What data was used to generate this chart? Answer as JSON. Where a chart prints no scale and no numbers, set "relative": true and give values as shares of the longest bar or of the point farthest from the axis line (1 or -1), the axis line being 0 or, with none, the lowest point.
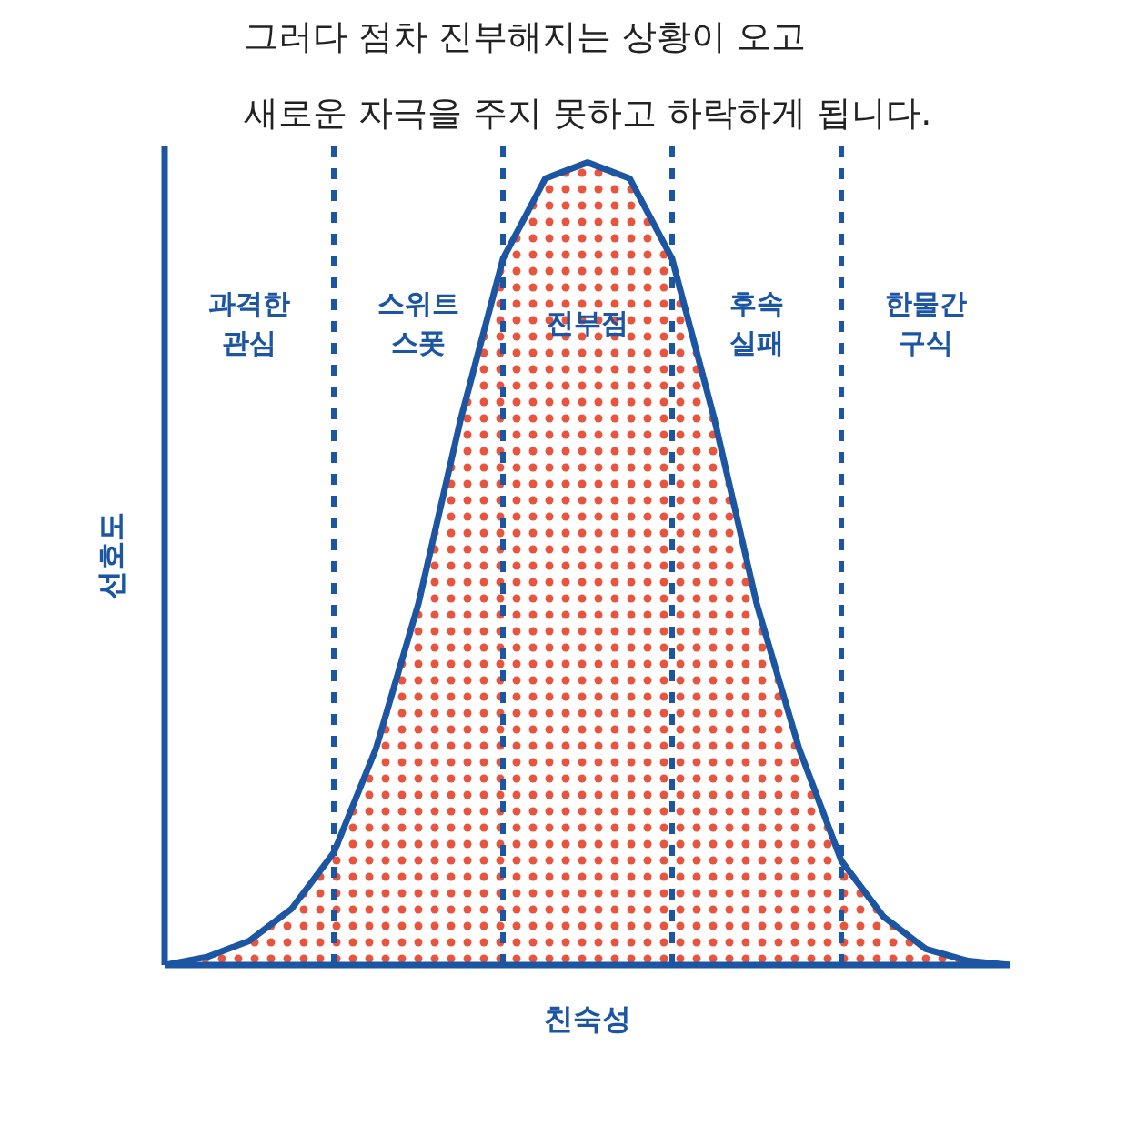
{
  "chart_data": {
    "type": "area",
    "title": "그러다 점차 진부해지는 상황이 오고\n새로운 자극을 주지 못하고 하락하게 됩니다.",
    "xlabel": "친숙성",
    "ylabel": "선호도",
    "relative": true,
    "grid": "x",
    "categories": [
      null,
      null,
      null,
      null,
      null,
      null,
      null,
      null,
      null,
      null,
      null,
      null,
      null,
      null,
      null,
      null,
      null,
      null,
      null,
      null,
      null
    ],
    "series": [
      {
        "color": "#1c56a3",
        "values": [
          0,
          0.01,
          0.03,
          0.07,
          0.14,
          0.27,
          0.45,
          0.68,
          0.88,
          0.98,
          1,
          0.98,
          0.88,
          0.68,
          0.45,
          0.27,
          0.13,
          0.06,
          0.02,
          0.005,
          0
        ]
      }
    ],
    "annotations": [
      "과격한\n관심",
      "스위트\n스폿",
      "진부점",
      "후속\n실패",
      "한물간\n구식"
    ]
  }
}
